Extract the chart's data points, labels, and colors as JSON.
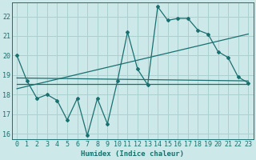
{
  "title": "",
  "xlabel": "Humidex (Indice chaleur)",
  "ylabel": "",
  "bg_color": "#cce8e8",
  "grid_color": "#aad0d0",
  "line_color": "#1a7070",
  "xlim": [
    -0.5,
    23.5
  ],
  "ylim": [
    15.7,
    22.7
  ],
  "yticks": [
    16,
    17,
    18,
    19,
    20,
    21,
    22
  ],
  "xticks": [
    0,
    1,
    2,
    3,
    4,
    5,
    6,
    7,
    8,
    9,
    10,
    11,
    12,
    13,
    14,
    15,
    16,
    17,
    18,
    19,
    20,
    21,
    22,
    23
  ],
  "main_x": [
    0,
    1,
    2,
    3,
    4,
    5,
    6,
    7,
    8,
    9,
    10,
    11,
    12,
    13,
    14,
    15,
    16,
    17,
    18,
    19,
    20,
    21,
    22,
    23
  ],
  "main_y": [
    20.0,
    18.7,
    17.8,
    18.0,
    17.7,
    16.7,
    17.8,
    15.9,
    17.8,
    16.5,
    18.7,
    21.2,
    19.3,
    18.5,
    22.5,
    21.8,
    21.9,
    21.9,
    21.3,
    21.1,
    20.2,
    19.9,
    18.9,
    18.6
  ],
  "line1_x": [
    0,
    23
  ],
  "line1_y": [
    18.55,
    18.55
  ],
  "line2_x": [
    0,
    23
  ],
  "line2_y": [
    18.3,
    21.1
  ],
  "line3_x": [
    0,
    23
  ],
  "line3_y": [
    18.85,
    18.7
  ]
}
